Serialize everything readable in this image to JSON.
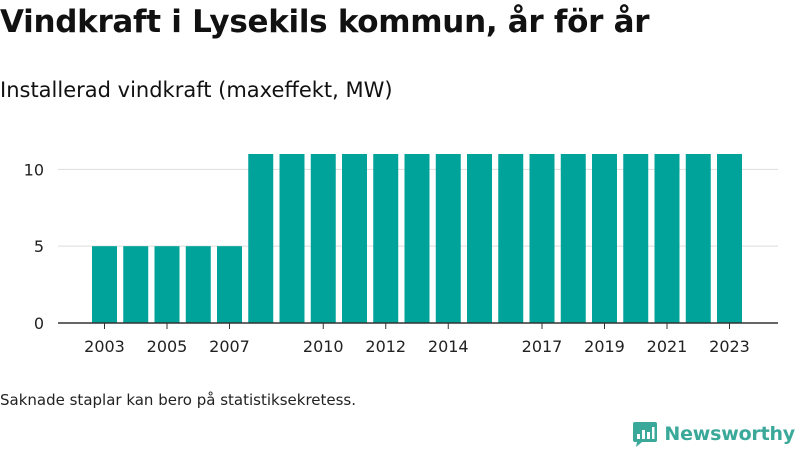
{
  "title": "Vindkraft i Lysekils kommun, år för år",
  "subtitle": "Installerad vindkraft (maxeffekt, MW)",
  "footnote": "Saknade staplar kan bero på statistiksekretess.",
  "brand": {
    "name": "Newsworthy",
    "icon": "newsworthy-logo-icon",
    "color": "#3aa99a"
  },
  "colors": {
    "bar": "#00a39a",
    "grid": "#dddddd",
    "axis": "#333333"
  },
  "chart_data": {
    "type": "bar",
    "x": [
      2003,
      2004,
      2005,
      2006,
      2007,
      2008,
      2009,
      2010,
      2011,
      2012,
      2013,
      2014,
      2015,
      2016,
      2017,
      2018,
      2019,
      2020,
      2021,
      2022,
      2023
    ],
    "values": [
      5,
      5,
      5,
      5,
      5,
      11,
      11,
      11,
      11,
      11,
      11,
      11,
      11,
      11,
      11,
      11,
      11,
      11,
      11,
      11,
      11
    ],
    "xticks": [
      2003,
      2005,
      2007,
      2010,
      2012,
      2014,
      2017,
      2019,
      2021,
      2023
    ],
    "yticks": [
      0,
      5,
      10
    ],
    "ylim": [
      0,
      11
    ],
    "xlabel": "",
    "ylabel": "",
    "grid": true,
    "legend": "none"
  }
}
